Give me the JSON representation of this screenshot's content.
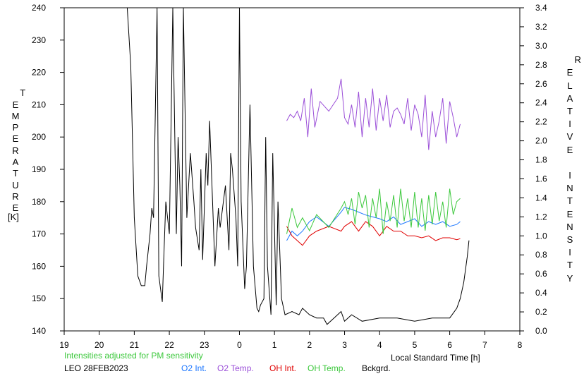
{
  "chart_data": {
    "type": "line",
    "title": "",
    "xlabel": "Local Standard Time [h]",
    "ylabel_left": "TEMPERATURE",
    "ylabel_left_unit": "[K]",
    "ylabel_right": "RELATIVE INTENSITY",
    "xlim": [
      19,
      32
    ],
    "x_tick_labels": [
      "19",
      "20",
      "21",
      "22",
      "23",
      "0",
      "1",
      "2",
      "3",
      "4",
      "5",
      "6",
      "7",
      "8"
    ],
    "ylim_left": [
      140,
      240
    ],
    "y_left_tick_labels": [
      "140",
      "150",
      "160",
      "170",
      "180",
      "190",
      "200",
      "210",
      "220",
      "230",
      "240"
    ],
    "ylim_right": [
      0.0,
      3.4
    ],
    "y_right_tick_labels": [
      "0.0",
      "0.2",
      "0.4",
      "0.6",
      "0.8",
      "1.0",
      "1.2",
      "1.4",
      "1.6",
      "1.8",
      "2.0",
      "2.2",
      "2.4",
      "2.6",
      "2.8",
      "3.0",
      "3.2",
      "3.4"
    ],
    "grid": false,
    "legend_placement": "bottom",
    "series": [
      {
        "name": "O2 Int.",
        "axis": "right",
        "color": "#1e78ff",
        "x": [
          25.35,
          25.5,
          25.65,
          25.8,
          26.0,
          26.2,
          26.55,
          26.9,
          27.0,
          27.2,
          27.4,
          27.6,
          27.8,
          28.0,
          28.2,
          28.4,
          28.6,
          28.8,
          29.0,
          29.2,
          29.4,
          29.6,
          29.8,
          30.0,
          30.2,
          30.3
        ],
        "y": [
          0.95,
          1.05,
          1.0,
          1.05,
          1.15,
          1.2,
          1.1,
          1.25,
          1.3,
          1.28,
          1.25,
          1.22,
          1.2,
          1.18,
          1.15,
          1.2,
          1.12,
          1.15,
          1.18,
          1.1,
          1.15,
          1.12,
          1.15,
          1.1,
          1.12,
          1.15
        ]
      },
      {
        "name": "O2 Temp.",
        "axis": "left",
        "x": [
          25.35,
          25.45,
          25.55,
          25.65,
          25.75,
          25.85,
          25.95,
          26.05,
          26.15,
          26.3,
          26.55,
          26.8,
          26.9,
          27.0,
          27.1,
          27.2,
          27.3,
          27.4,
          27.5,
          27.6,
          27.7,
          27.8,
          27.9,
          28.0,
          28.1,
          28.2,
          28.3,
          28.4,
          28.5,
          28.6,
          28.7,
          28.8,
          28.9,
          29.0,
          29.1,
          29.2,
          29.3,
          29.4,
          29.5,
          29.6,
          29.7,
          29.8,
          29.9,
          30.0,
          30.1,
          30.2,
          30.3
        ],
        "y": [
          205,
          207,
          206,
          208,
          205,
          212,
          200,
          215,
          203,
          211,
          208,
          212,
          218,
          206,
          204,
          210,
          203,
          214,
          200,
          212,
          203,
          215,
          202,
          212,
          205,
          213,
          203,
          208,
          209,
          207,
          204,
          212,
          202,
          210,
          207,
          200,
          213,
          196,
          208,
          200,
          205,
          212,
          198,
          211,
          206,
          200,
          204
        ],
        "color": "#9b4fd8"
      },
      {
        "name": "OH Int.",
        "axis": "right",
        "color": "#e00000",
        "x": [
          25.35,
          25.5,
          25.65,
          25.8,
          26.0,
          26.2,
          26.55,
          26.9,
          27.0,
          27.2,
          27.4,
          27.6,
          27.8,
          28.0,
          28.2,
          28.4,
          28.6,
          28.8,
          29.0,
          29.2,
          29.4,
          29.6,
          29.8,
          30.0,
          30.2,
          30.3
        ],
        "y": [
          1.1,
          1.0,
          0.95,
          0.9,
          1.0,
          1.05,
          1.1,
          1.05,
          1.1,
          1.15,
          1.05,
          1.15,
          1.1,
          1.0,
          1.1,
          1.05,
          1.05,
          1.0,
          1.0,
          0.98,
          1.0,
          0.95,
          0.98,
          0.98,
          0.96,
          0.97
        ],
        "color_note": "red"
      },
      {
        "name": "OH Temp.",
        "axis": "left",
        "color": "#3cc83c",
        "x": [
          25.35,
          25.5,
          25.65,
          25.8,
          26.0,
          26.2,
          26.55,
          26.9,
          27.0,
          27.1,
          27.2,
          27.3,
          27.4,
          27.5,
          27.6,
          27.7,
          27.8,
          27.9,
          28.0,
          28.1,
          28.2,
          28.3,
          28.4,
          28.5,
          28.6,
          28.7,
          28.8,
          28.9,
          29.0,
          29.1,
          29.2,
          29.3,
          29.4,
          29.5,
          29.6,
          29.7,
          29.8,
          29.9,
          30.0,
          30.1,
          30.2,
          30.3
        ],
        "y": [
          170,
          178,
          172,
          175,
          171,
          176,
          172,
          178,
          180,
          176,
          181,
          173,
          183,
          178,
          182,
          172,
          181,
          175,
          184,
          170,
          180,
          174,
          182,
          172,
          184,
          174,
          181,
          172,
          183,
          172,
          181,
          171,
          182,
          173,
          183,
          174,
          180,
          172,
          184,
          176,
          180,
          181
        ]
      },
      {
        "name": "Bckgrd.",
        "axis": "left",
        "color": "#000000",
        "x": [
          20.8,
          20.9,
          21.0,
          21.1,
          21.2,
          21.3,
          21.35,
          21.45,
          21.5,
          21.55,
          21.65,
          21.7,
          21.8,
          21.85,
          21.9,
          22.0,
          22.05,
          22.1,
          22.2,
          22.25,
          22.3,
          22.35,
          22.4,
          22.5,
          22.6,
          22.7,
          22.75,
          22.85,
          22.9,
          22.95,
          23.05,
          23.1,
          23.15,
          23.3,
          23.4,
          23.45,
          23.6,
          23.7,
          23.75,
          23.8,
          23.9,
          23.95,
          24.0,
          24.05,
          24.15,
          24.2,
          24.3,
          24.4,
          24.5,
          24.55,
          24.6,
          24.7,
          24.75,
          24.8,
          24.9,
          24.95,
          25.05,
          25.1,
          25.2,
          25.3,
          25.5,
          25.7,
          25.8,
          26.0,
          26.2,
          26.4,
          26.5,
          26.7,
          26.9,
          27.0,
          27.2,
          27.5,
          28.0,
          28.5,
          29.0,
          29.5,
          30.0,
          30.2,
          30.3,
          30.4,
          30.5,
          30.55
        ],
        "y": [
          240,
          222,
          175,
          157,
          154,
          154,
          160,
          170,
          178,
          175,
          240,
          157,
          149,
          165,
          180,
          170,
          205,
          240,
          170,
          200,
          185,
          160,
          240,
          175,
          195,
          180,
          172,
          165,
          190,
          162,
          195,
          185,
          205,
          160,
          178,
          172,
          185,
          165,
          195,
          190,
          175,
          160,
          240,
          180,
          153,
          160,
          210,
          160,
          147,
          146,
          148,
          150,
          200,
          160,
          145,
          195,
          148,
          180,
          150,
          145,
          146,
          145,
          147,
          145,
          144,
          144,
          142,
          144,
          146,
          143,
          145,
          143,
          144,
          144,
          143,
          144,
          144,
          147,
          150,
          155,
          163,
          168
        ]
      }
    ],
    "notes": [
      "Intensities adjusted for PM sensitivity",
      "LEO 28FEB2023"
    ]
  }
}
